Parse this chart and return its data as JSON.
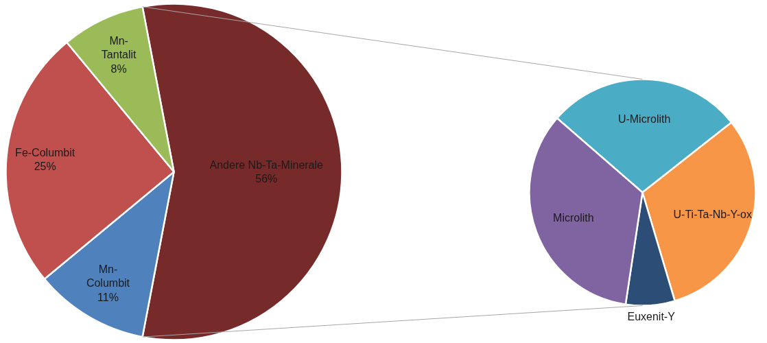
{
  "chart_data": [
    {
      "type": "pie",
      "categories": [
        "Andere Nb-Ta-Minerale",
        "Mn-Columbit",
        "Fe-Columbit",
        "Mn-Tantalit"
      ],
      "values": [
        56,
        11,
        25,
        8
      ],
      "colors": [
        "#772a2a",
        "#4f81bd",
        "#c0504d",
        "#9bbb59"
      ],
      "value_labels": [
        "56%",
        "11%",
        "25%",
        "8%"
      ]
    },
    {
      "type": "pie",
      "categories": [
        "U-Microlith",
        "U-Ti-Ta-Nb-Y-ox",
        "Euxenit-Y",
        "Microlith"
      ],
      "values": [
        28,
        31,
        7,
        34
      ],
      "colors": [
        "#4bacc6",
        "#f79646",
        "#2c4d75",
        "#8064a2"
      ]
    }
  ]
}
